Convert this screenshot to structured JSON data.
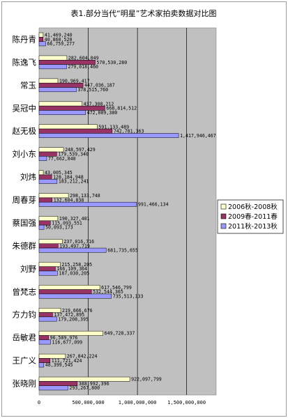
{
  "chart_data": {
    "type": "bar",
    "orientation": "horizontal",
    "title": "表1.部分当代“明星”艺术家拍卖数据对比图",
    "xlabel": "",
    "ylabel": "",
    "xlim": [
      0,
      1800000000
    ],
    "xticks": [
      0,
      500000000,
      1000000000,
      1500000000
    ],
    "xtick_labels": [
      "0",
      "500,000,000",
      "1,000,000,000",
      "1,500,000,000"
    ],
    "grid": true,
    "legend_position": "right",
    "categories": [
      "陈丹青",
      "陈逸飞",
      "常玉",
      "吴冠中",
      "赵无极",
      "刘小东",
      "刘炜",
      "周春芽",
      "蔡国强",
      "朱德群",
      "刘野",
      "曾梵志",
      "方力钧",
      "岳敏君",
      "王广义",
      "张晓刚"
    ],
    "series": [
      {
        "name": "2006秋-2008秋",
        "color": "#ffffcc",
        "values": [
          41469240,
          282604049,
          190969417,
          437308212,
          591133489,
          248597429,
          43005345,
          298133748,
          190327401,
          237016716,
          215258205,
          617546799,
          219666676,
          649728337,
          267842224,
          922097799
        ],
        "labels": [
          "41,469,240",
          "282,604,049",
          "190,969,417",
          "437,308,212",
          "591,133,489",
          "248,597,429",
          "43,005,345",
          "298,133,748",
          "190,327,401",
          "237,016,716",
          "215,258,205",
          "617,546,799",
          "219,666,676",
          "649,728,337",
          "267,842,224",
          "922,097,799"
        ]
      },
      {
        "name": "2009春-2011春",
        "color": "#993366",
        "values": [
          40860520,
          570530280,
          447036187,
          668814512,
          742781363,
          179539340,
          128184948,
          132604038,
          115093551,
          193497719,
          166109364,
          532544365,
          137472895,
          96589976,
          111721424,
          388992396
        ],
        "labels": [
          "40,860,520",
          "570,530,280",
          "447,036,187",
          "668,814,512",
          "742,781,363",
          "179,539,340",
          "128,184,948",
          "132,604,038",
          "115,093,551",
          "193,497,719",
          "166,109,364",
          "532,544,365",
          "137,472,895",
          "96,589,976",
          "111,721,424",
          "388,992,396"
        ]
      },
      {
        "name": "2011秋-2013秋",
        "color": "#9999ff",
        "values": [
          66759277,
          279018460,
          378515760,
          472009380,
          1417946467,
          77662840,
          183212241,
          991466134,
          50093173,
          681735655,
          187030205,
          735513133,
          179208395,
          116677099,
          48399545,
          293267800
        ],
        "labels": [
          "66,759,277",
          "279,018,460",
          "378,515,760",
          "472,009,380",
          "1,417,946,467",
          "77,662,840",
          "183,212,241",
          "991,466,134",
          "50,093,173",
          "681,735,655",
          "187,030,205",
          "735,513,133",
          "179,208,395",
          "116,677,099",
          "48,399,545",
          "293,267,800"
        ]
      }
    ]
  }
}
